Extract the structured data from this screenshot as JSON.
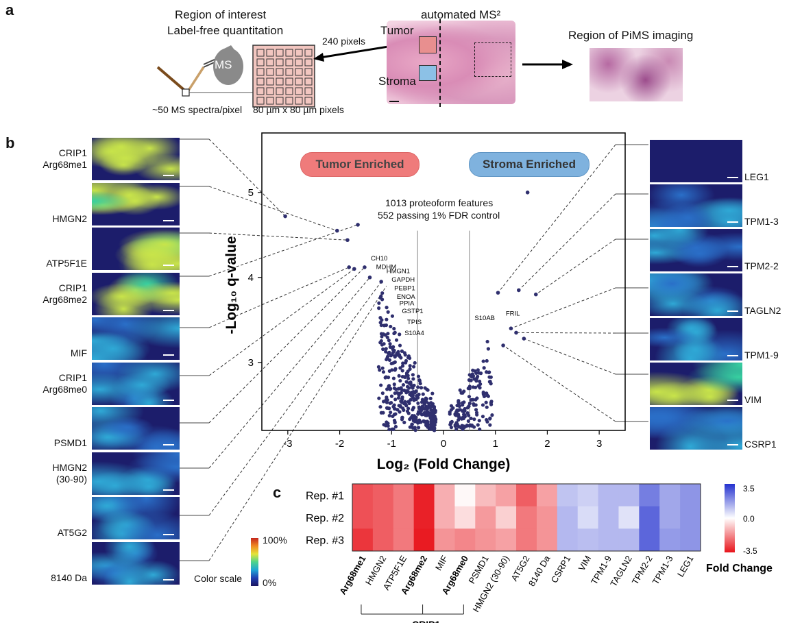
{
  "panel_a": {
    "letter": "a",
    "roi_title": [
      "Region of interest",
      "Label-free quantitation"
    ],
    "ms_label": "MS",
    "spectra_label": "~50 MS spectra/pixel",
    "pixel_size_label": "80 µm x 80 µm pixels",
    "pixels_label": "240 pixels",
    "tumor_label": "Tumor",
    "stroma_label": "Stroma",
    "automated_label": "automated MS²",
    "pims_title": "Region of PiMS imaging"
  },
  "panel_b": {
    "letter": "b",
    "left_tiles": [
      {
        "label": [
          "CRIP1",
          "Arg68me1"
        ]
      },
      {
        "label": [
          "HMGN2"
        ]
      },
      {
        "label": [
          "ATP5F1E"
        ]
      },
      {
        "label": [
          "CRIP1",
          "Arg68me2"
        ]
      },
      {
        "label": [
          "MIF"
        ]
      },
      {
        "label": [
          "CRIP1",
          "Arg68me0"
        ]
      },
      {
        "label": [
          "PSMD1"
        ]
      },
      {
        "label": [
          "HMGN2",
          "(30-90)"
        ]
      },
      {
        "label": [
          "AT5G2"
        ]
      },
      {
        "label": [
          "8140 Da"
        ]
      }
    ],
    "right_tiles": [
      {
        "label": "LEG1"
      },
      {
        "label": "TPM1-3"
      },
      {
        "label": "TPM2-2"
      },
      {
        "label": "TAGLN2"
      },
      {
        "label": "TPM1-9"
      },
      {
        "label": "VIM"
      },
      {
        "label": "CSRP1"
      }
    ],
    "color_scale": {
      "label": "Color scale",
      "max": "100%",
      "min": "0%"
    },
    "tumor_badge": "Tumor Enriched",
    "stroma_badge": "Stroma Enriched",
    "feature_note": [
      "1013 proteoform features",
      "552 passing 1% FDR control"
    ],
    "colors": {
      "tumor_badge": "#ef7b7b",
      "stroma_badge": "#7fb2de",
      "points": "#2f2f6e"
    }
  },
  "chart_data": [
    {
      "type": "scatter",
      "xlabel": "Log₂ (Fold Change)",
      "ylabel": "-Log₁₀ q-value",
      "xlim": [
        -3.5,
        3.5
      ],
      "ylim": [
        2.2,
        5.7
      ],
      "xticks": [
        "-3",
        "-2",
        "-1",
        "0",
        "1",
        "2",
        "3"
      ],
      "yticks": [
        "3",
        "4",
        "5"
      ],
      "thresholds_x": [
        -0.5,
        0.5
      ],
      "annotations": [
        {
          "text": "CH10",
          "x": -1.4,
          "y": 4.2
        },
        {
          "text": "MDHM",
          "x": -1.3,
          "y": 4.1
        },
        {
          "text": "HMGN1",
          "x": -1.1,
          "y": 4.05
        },
        {
          "text": "GAPDH",
          "x": -1.0,
          "y": 3.95
        },
        {
          "text": "PEBP1",
          "x": -0.95,
          "y": 3.85
        },
        {
          "text": "ENOA",
          "x": -0.9,
          "y": 3.75
        },
        {
          "text": "PPIA",
          "x": -0.85,
          "y": 3.67
        },
        {
          "text": "GSTP1",
          "x": -0.8,
          "y": 3.58
        },
        {
          "text": "TPIS",
          "x": -0.7,
          "y": 3.45
        },
        {
          "text": "S10A4",
          "x": -0.75,
          "y": 3.32
        },
        {
          "text": "S10AB",
          "x": 0.6,
          "y": 3.5
        },
        {
          "text": "FRIL",
          "x": 1.2,
          "y": 3.55
        }
      ],
      "highlighted_points": [
        {
          "x": -3.05,
          "y": 4.72
        },
        {
          "x": -2.05,
          "y": 4.55
        },
        {
          "x": -1.85,
          "y": 4.44
        },
        {
          "x": -1.65,
          "y": 4.62
        },
        {
          "x": -1.82,
          "y": 4.12
        },
        {
          "x": -1.72,
          "y": 4.1
        },
        {
          "x": -1.52,
          "y": 4.12
        },
        {
          "x": -1.42,
          "y": 4.0
        },
        {
          "x": -1.2,
          "y": 3.95
        },
        {
          "x": 1.62,
          "y": 5.0
        },
        {
          "x": 1.05,
          "y": 3.82
        },
        {
          "x": 1.45,
          "y": 3.85
        },
        {
          "x": 1.78,
          "y": 3.8
        },
        {
          "x": 1.3,
          "y": 3.4
        },
        {
          "x": 1.4,
          "y": 3.35
        },
        {
          "x": 1.55,
          "y": 3.28
        },
        {
          "x": 1.15,
          "y": 3.2
        }
      ]
    },
    {
      "type": "heatmap",
      "rows": [
        "Rep. #1",
        "Rep. #2",
        "Rep. #3"
      ],
      "columns": [
        "Arg68me1",
        "HMGN2",
        "ATP5F1E",
        "Arg68me2",
        "MIF",
        "Arg68me0",
        "PSMD1",
        "HMGN2 (30-90)",
        "AT5G2",
        "8140 Da",
        "CSRP1",
        "VIM",
        "TPM1-9",
        "TAGLN2",
        "TPM2-2",
        "TPM1-3",
        "LEG1"
      ],
      "bold_columns": [
        "Arg68me1",
        "Arg68me2",
        "Arg68me0"
      ],
      "group_label": "CRIP1",
      "values": [
        [
          -2.6,
          -2.4,
          -2.0,
          -3.3,
          -1.2,
          -0.1,
          -1.0,
          -1.4,
          -2.4,
          -1.4,
          1.0,
          0.8,
          1.2,
          1.2,
          2.2,
          1.5,
          1.8
        ],
        [
          -2.6,
          -2.4,
          -2.0,
          -3.3,
          -1.2,
          -0.5,
          -1.5,
          -0.7,
          -2.0,
          -1.6,
          1.2,
          0.6,
          1.2,
          0.5,
          2.6,
          1.5,
          1.8
        ],
        [
          -3.0,
          -2.4,
          -2.0,
          -3.4,
          -1.6,
          -1.8,
          -1.6,
          -1.4,
          -2.0,
          -1.6,
          1.2,
          1.1,
          1.2,
          1.2,
          2.6,
          1.7,
          1.8
        ]
      ],
      "colorbar": {
        "max_label": "3.5",
        "mid_label": "0.0",
        "min_label": "-3.5",
        "title": "Fold Change",
        "range": [
          -3.5,
          3.5
        ]
      },
      "colors": {
        "negative": "#e8141b",
        "neutral": "#ffffff",
        "positive": "#2331cf"
      }
    }
  ],
  "panel_c": {
    "letter": "c"
  }
}
